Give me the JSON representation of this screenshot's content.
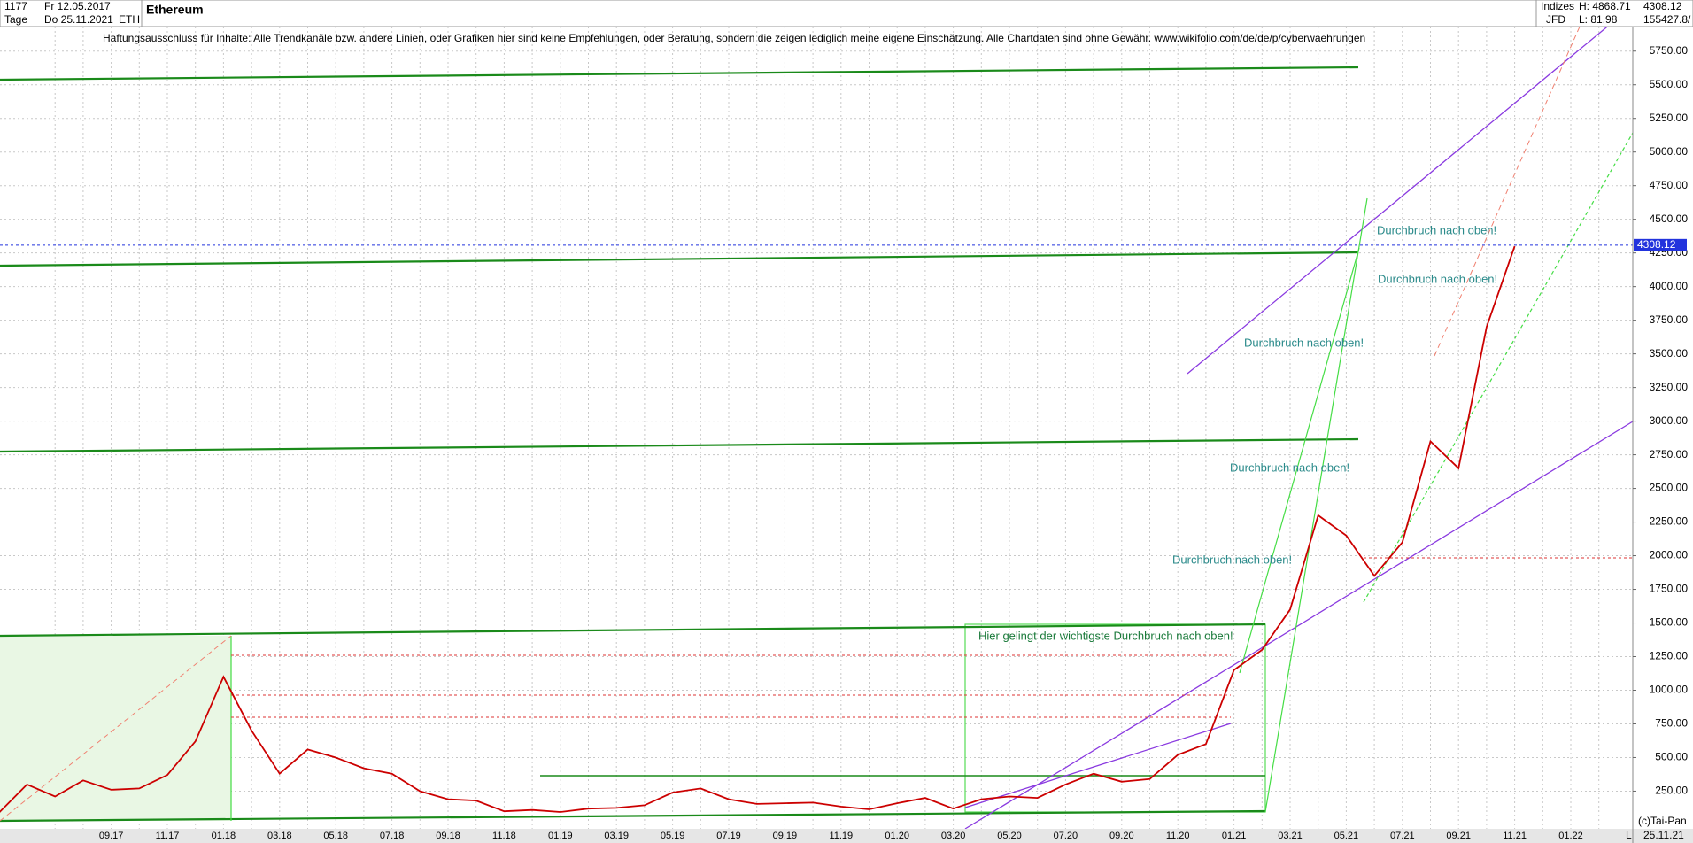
{
  "chart_data": {
    "type": "line",
    "title": "Ethereum",
    "symbol": "ETH",
    "count": "1177",
    "period": "Tage",
    "start_date": "Fr 12.05.2017",
    "end_date": "Do 25.11.2021",
    "market": "Indizes",
    "broker": "JFD",
    "high_label": "H: 4868.71",
    "low_label": "L: 81.98",
    "volume": "155427.8/",
    "disclaimer": "Haftungsausschluss für Inhalte: Alle Trendkanäle bzw. andere Linien, oder Grafiken hier sind keine Empfehlungen, oder Beratung, sondern die zeigen lediglich meine eigene Einschätzung. Alle Chartdaten sind ohne Gewähr.  www.wikifolio.com/de/de/p/cyberwaehrungen",
    "annotations": [
      "Durchbruch nach oben!",
      "Durchbruch nach oben!",
      "Durchbruch nach oben!",
      "Durchbruch nach oben!",
      "Durchbruch nach oben!",
      "Hier gelingt der wichtigste Durchbruch nach oben!"
    ],
    "copyright": "(c)Tai-Pan",
    "date_label": "25.11.21",
    "corner_label": "L",
    "last_price": 4308.12,
    "categories": [
      null,
      null,
      null,
      null,
      "09.17",
      null,
      "11.17",
      null,
      "01.18",
      null,
      "03.18",
      null,
      "05.18",
      null,
      "07.18",
      null,
      "09.18",
      null,
      "11.18",
      null,
      "01.19",
      null,
      "03.19",
      null,
      "05.19",
      null,
      "07.19",
      null,
      "09.19",
      null,
      "11.19",
      null,
      "01.20",
      null,
      "03.20",
      null,
      "05.20",
      null,
      "07.20",
      null,
      "09.20",
      null,
      "11.20",
      null,
      "01.21",
      null,
      "03.21",
      null,
      "05.21",
      null,
      "07.21",
      null,
      "09.21",
      null,
      "11.21",
      null,
      "01.22",
      null
    ],
    "values": [
      90,
      300,
      210,
      330,
      260,
      270,
      370,
      620,
      1100,
      700,
      380,
      560,
      500,
      420,
      380,
      250,
      190,
      180,
      100,
      110,
      95,
      120,
      125,
      145,
      240,
      270,
      190,
      155,
      160,
      165,
      135,
      115,
      160,
      200,
      120,
      190,
      210,
      200,
      300,
      380,
      320,
      340,
      520,
      600,
      1150,
      1300,
      1600,
      2300,
      2150,
      1850,
      2100,
      2850,
      2650,
      3700,
      4300,
      null,
      null,
      null
    ],
    "color": "#cc0000",
    "ylim": [
      -30,
      6130
    ],
    "yticks": [
      {
        "value": 250,
        "label": "250.00"
      },
      {
        "value": 500,
        "label": "500.00"
      },
      {
        "value": 750,
        "label": "750.00"
      },
      {
        "value": 1000,
        "label": "1000.00"
      },
      {
        "value": 1250,
        "label": "1250.00"
      },
      {
        "value": 1500,
        "label": "1500.00"
      },
      {
        "value": 1750,
        "label": "1750.00"
      },
      {
        "value": 2000,
        "label": "2000.00"
      },
      {
        "value": 2250,
        "label": "2250.00"
      },
      {
        "value": 2500,
        "label": "2500.00"
      },
      {
        "value": 2750,
        "label": "2750.00"
      },
      {
        "value": 3000,
        "label": "3000.00"
      },
      {
        "value": 3250,
        "label": "3250.00"
      },
      {
        "value": 3500,
        "label": "3500.00"
      },
      {
        "value": 3750,
        "label": "3750.00"
      },
      {
        "value": 4000,
        "label": "4000.00"
      },
      {
        "value": 4250,
        "label": "4250.00"
      },
      {
        "value": 4500,
        "label": "4500.00"
      },
      {
        "value": 4750,
        "label": "4750.00"
      },
      {
        "value": 5000,
        "label": "5000.00"
      },
      {
        "value": 5250,
        "label": "5250.00"
      },
      {
        "value": 5500,
        "label": "5500.00"
      },
      {
        "value": 5750,
        "label": "5750.00"
      }
    ],
    "grid": true
  }
}
